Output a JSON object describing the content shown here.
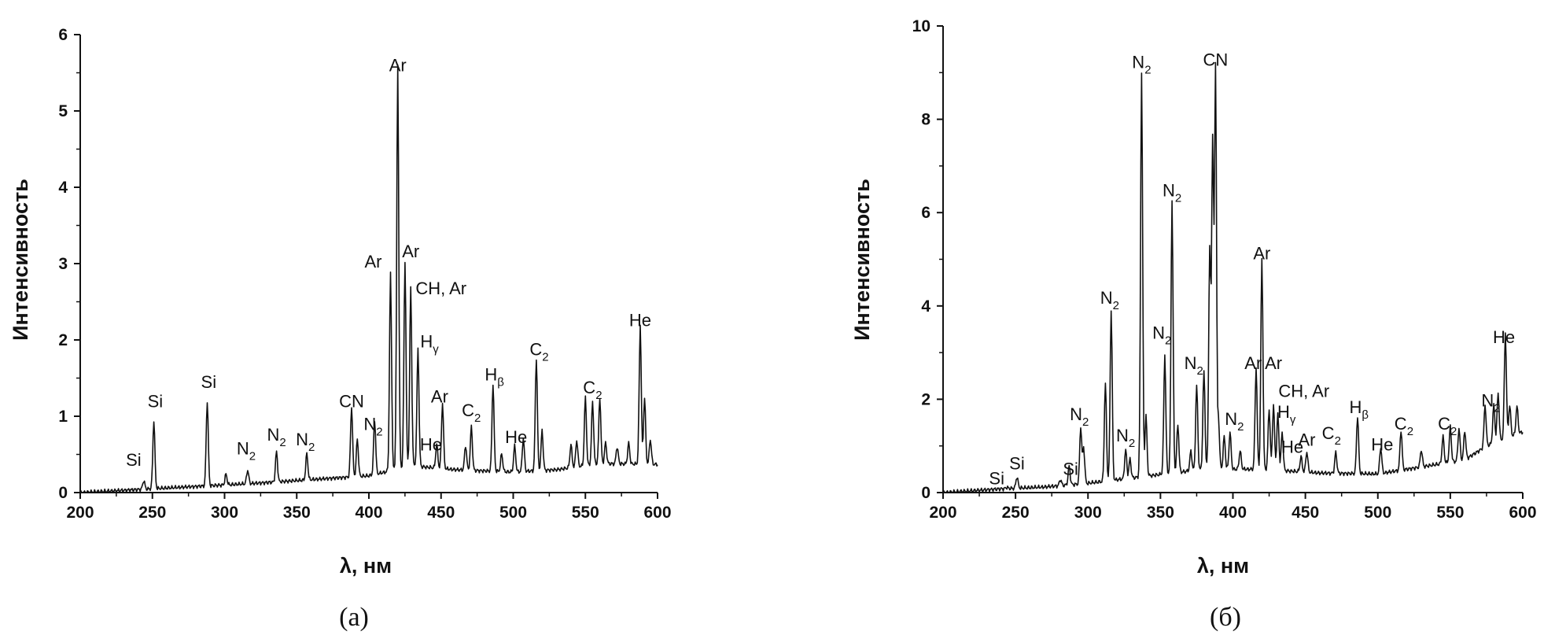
{
  "chart_data": [
    {
      "type": "line",
      "caption": "(а)",
      "xlabel": "λ, нм",
      "ylabel": "Интенсивность",
      "xlim": [
        200,
        600
      ],
      "ylim": [
        0,
        6
      ],
      "xticks": [
        "200",
        "250",
        "300",
        "350",
        "400",
        "450",
        "500",
        "550",
        "600"
      ],
      "yticks": [
        "0",
        "1",
        "2",
        "3",
        "4",
        "5",
        "6"
      ],
      "baseline": [
        [
          200,
          0.0
        ],
        [
          240,
          0.04
        ],
        [
          280,
          0.08
        ],
        [
          320,
          0.12
        ],
        [
          360,
          0.17
        ],
        [
          400,
          0.22
        ],
        [
          430,
          0.35
        ],
        [
          460,
          0.3
        ],
        [
          500,
          0.27
        ],
        [
          530,
          0.3
        ],
        [
          560,
          0.38
        ],
        [
          600,
          0.37
        ]
      ],
      "peaks": [
        [
          244,
          0.14
        ],
        [
          251,
          0.93
        ],
        [
          288,
          1.17
        ],
        [
          301,
          0.2
        ],
        [
          316,
          0.25
        ],
        [
          336,
          0.48
        ],
        [
          357,
          0.45
        ],
        [
          388,
          1.05
        ],
        [
          392,
          0.62
        ],
        [
          404,
          0.85
        ],
        [
          415,
          2.75
        ],
        [
          420,
          5.47
        ],
        [
          425,
          2.9
        ],
        [
          429,
          2.55
        ],
        [
          434,
          1.75
        ],
        [
          447,
          0.5
        ],
        [
          451,
          1.05
        ],
        [
          467,
          0.5
        ],
        [
          471,
          0.75
        ],
        [
          486,
          1.32
        ],
        [
          492,
          0.4
        ],
        [
          501,
          0.5
        ],
        [
          507,
          0.6
        ],
        [
          516,
          1.65
        ],
        [
          520,
          0.7
        ],
        [
          540,
          0.5
        ],
        [
          544,
          0.55
        ],
        [
          550,
          1.1
        ],
        [
          555,
          1.05
        ],
        [
          560,
          1.1
        ],
        [
          564,
          0.5
        ],
        [
          572,
          0.45
        ],
        [
          580,
          0.5
        ],
        [
          588,
          2.05
        ],
        [
          591,
          1.1
        ],
        [
          595,
          0.55
        ]
      ],
      "annotations": [
        {
          "text": "Si",
          "sub": "",
          "x": 237,
          "y": 0.35
        },
        {
          "text": "Si",
          "sub": "",
          "x": 252,
          "y": 1.12
        },
        {
          "text": "Si",
          "sub": "",
          "x": 289,
          "y": 1.37
        },
        {
          "text": "N",
          "sub": "2",
          "x": 315,
          "y": 0.5
        },
        {
          "text": "N",
          "sub": "2",
          "x": 336,
          "y": 0.68
        },
        {
          "text": "N",
          "sub": "2",
          "x": 356,
          "y": 0.62
        },
        {
          "text": "CN",
          "sub": "",
          "x": 388,
          "y": 1.12
        },
        {
          "text": "N",
          "sub": "2",
          "x": 403,
          "y": 0.82
        },
        {
          "text": "Ar",
          "sub": "",
          "x": 403,
          "y": 2.95
        },
        {
          "text": "Ar",
          "sub": "",
          "x": 420,
          "y": 5.52
        },
        {
          "text": "Ar",
          "sub": "",
          "x": 429,
          "y": 3.08
        },
        {
          "text": "CH, Ar",
          "sub": "",
          "x": 450,
          "y": 2.6
        },
        {
          "text": "H",
          "sub": "γ",
          "x": 442,
          "y": 1.9
        },
        {
          "text": "He",
          "sub": "",
          "x": 443,
          "y": 0.55
        },
        {
          "text": "Ar",
          "sub": "",
          "x": 449,
          "y": 1.18
        },
        {
          "text": "C",
          "sub": "2",
          "x": 471,
          "y": 1.0
        },
        {
          "text": "H",
          "sub": "β",
          "x": 487,
          "y": 1.47
        },
        {
          "text": "He",
          "sub": "",
          "x": 502,
          "y": 0.65
        },
        {
          "text": "C",
          "sub": "2",
          "x": 518,
          "y": 1.8
        },
        {
          "text": "C",
          "sub": "2",
          "x": 555,
          "y": 1.3
        },
        {
          "text": "He",
          "sub": "",
          "x": 588,
          "y": 2.18
        }
      ]
    },
    {
      "type": "line",
      "caption": "(б)",
      "xlabel": "λ, нм",
      "ylabel": "Интенсивность",
      "xlim": [
        200,
        600
      ],
      "ylim": [
        0,
        10
      ],
      "xticks": [
        "200",
        "250",
        "300",
        "350",
        "400",
        "450",
        "500",
        "550",
        "600"
      ],
      "yticks": [
        "0",
        "2",
        "4",
        "6",
        "8",
        "10"
      ],
      "baseline": [
        [
          200,
          0.0
        ],
        [
          240,
          0.08
        ],
        [
          270,
          0.12
        ],
        [
          300,
          0.2
        ],
        [
          340,
          0.35
        ],
        [
          380,
          0.5
        ],
        [
          420,
          0.5
        ],
        [
          460,
          0.42
        ],
        [
          500,
          0.4
        ],
        [
          530,
          0.55
        ],
        [
          560,
          0.7
        ],
        [
          575,
          1.0
        ],
        [
          600,
          1.3
        ]
      ],
      "peaks": [
        [
          244,
          0.08
        ],
        [
          251,
          0.3
        ],
        [
          281,
          0.22
        ],
        [
          287,
          0.5
        ],
        [
          295,
          1.35
        ],
        [
          297,
          0.9
        ],
        [
          312,
          2.25
        ],
        [
          316,
          3.8
        ],
        [
          326,
          0.8
        ],
        [
          329,
          0.6
        ],
        [
          337,
          8.9
        ],
        [
          340,
          1.5
        ],
        [
          353,
          2.8
        ],
        [
          358,
          6.1
        ],
        [
          362,
          1.3
        ],
        [
          371,
          0.7
        ],
        [
          375,
          2.1
        ],
        [
          380,
          2.4
        ],
        [
          384,
          5.0
        ],
        [
          386,
          7.4
        ],
        [
          388,
          9.0
        ],
        [
          390,
          1.4
        ],
        [
          394,
          1.0
        ],
        [
          398,
          1.1
        ],
        [
          405,
          0.7
        ],
        [
          416,
          2.5
        ],
        [
          420,
          4.8
        ],
        [
          425,
          1.6
        ],
        [
          428,
          1.7
        ],
        [
          431,
          1.5
        ],
        [
          434,
          1.1
        ],
        [
          447,
          0.6
        ],
        [
          451,
          0.7
        ],
        [
          471,
          0.7
        ],
        [
          486,
          1.48
        ],
        [
          502,
          0.8
        ],
        [
          516,
          1.15
        ],
        [
          530,
          0.7
        ],
        [
          545,
          0.95
        ],
        [
          550,
          1.15
        ],
        [
          556,
          1.1
        ],
        [
          560,
          1.05
        ],
        [
          574,
          1.5
        ],
        [
          580,
          1.45
        ],
        [
          583,
          1.7
        ],
        [
          588,
          2.97
        ],
        [
          591,
          1.4
        ],
        [
          596,
          1.35
        ]
      ],
      "annotations": [
        {
          "text": "Si",
          "sub": "",
          "x": 237,
          "y": 0.18
        },
        {
          "text": "Si",
          "sub": "",
          "x": 251,
          "y": 0.5
        },
        {
          "text": "Si",
          "sub": "",
          "x": 288,
          "y": 0.38
        },
        {
          "text": "N",
          "sub": "2",
          "x": 294,
          "y": 1.55
        },
        {
          "text": "N",
          "sub": "2",
          "x": 315,
          "y": 4.05
        },
        {
          "text": "N",
          "sub": "2",
          "x": 326,
          "y": 1.1
        },
        {
          "text": "N",
          "sub": "2",
          "x": 337,
          "y": 9.1
        },
        {
          "text": "CN",
          "sub": "",
          "x": 388,
          "y": 9.15
        },
        {
          "text": "N",
          "sub": "2",
          "x": 358,
          "y": 6.35
        },
        {
          "text": "N",
          "sub": "2",
          "x": 351,
          "y": 3.3
        },
        {
          "text": "N",
          "sub": "2",
          "x": 373,
          "y": 2.65
        },
        {
          "text": "N",
          "sub": "2",
          "x": 401,
          "y": 1.45
        },
        {
          "text": "Ar",
          "sub": "",
          "x": 420,
          "y": 5.0
        },
        {
          "text": "Ar",
          "sub": "",
          "x": 414,
          "y": 2.65
        },
        {
          "text": "Ar",
          "sub": "",
          "x": 428,
          "y": 2.65
        },
        {
          "text": "CH, Ar",
          "sub": "",
          "x": 449,
          "y": 2.05
        },
        {
          "text": "H",
          "sub": "γ",
          "x": 437,
          "y": 1.6
        },
        {
          "text": "He",
          "sub": "",
          "x": 441,
          "y": 0.85
        },
        {
          "text": "Ar",
          "sub": "",
          "x": 451,
          "y": 1.0
        },
        {
          "text": "C",
          "sub": "2",
          "x": 468,
          "y": 1.15
        },
        {
          "text": "H",
          "sub": "β",
          "x": 487,
          "y": 1.7
        },
        {
          "text": "He",
          "sub": "",
          "x": 503,
          "y": 0.9
        },
        {
          "text": "C",
          "sub": "2",
          "x": 518,
          "y": 1.35
        },
        {
          "text": "C",
          "sub": "2",
          "x": 548,
          "y": 1.35
        },
        {
          "text": "N",
          "sub": "2",
          "x": 578,
          "y": 1.85
        },
        {
          "text": "He",
          "sub": "",
          "x": 587,
          "y": 3.2
        }
      ]
    }
  ]
}
